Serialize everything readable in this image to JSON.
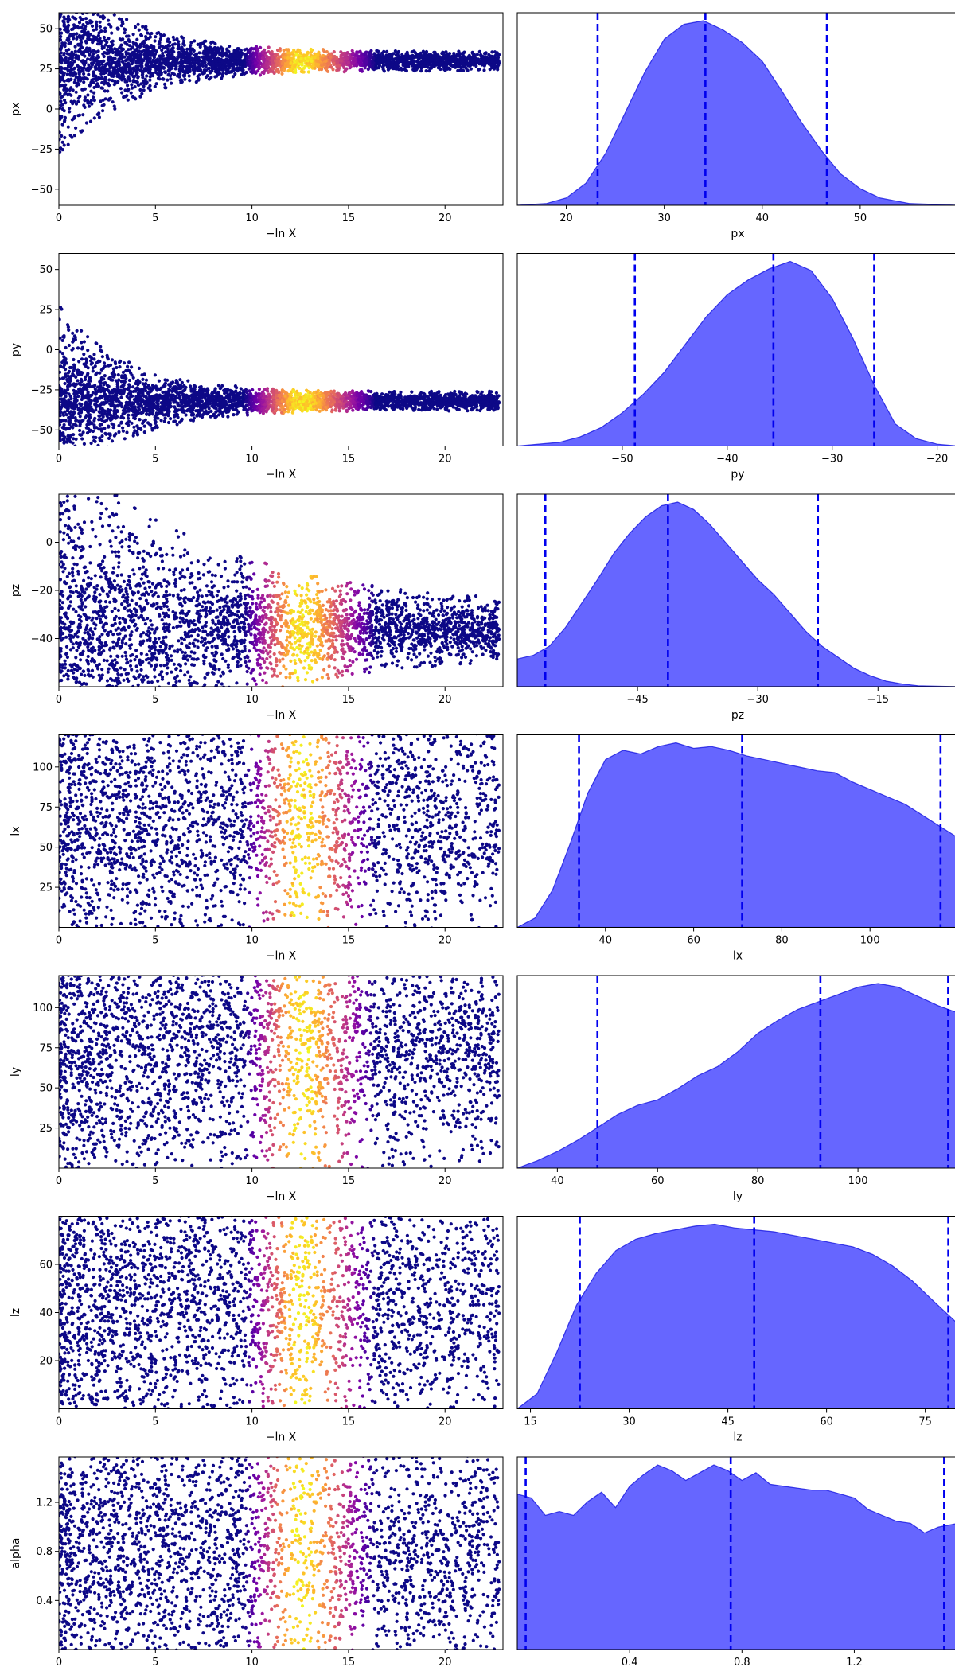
{
  "chart_data": [
    {
      "variable": "px",
      "ylabel": "px",
      "xlabel": "−ln X",
      "dist_xlabel": "px",
      "ylim": [
        -60,
        60
      ],
      "yticks": [
        -50,
        -25,
        0,
        25,
        50
      ],
      "scatter": {
        "type": "scatter",
        "xlim": [
          0,
          23
        ],
        "xticks": [
          0,
          5,
          10,
          15,
          20
        ],
        "center": 30,
        "spread0": 60,
        "spread_end": 6,
        "decay": 0.28
      },
      "dist": {
        "type": "area",
        "xlim": [
          15,
          60
        ],
        "xticks": [
          20,
          30,
          40,
          50
        ],
        "quantiles": [
          23.2,
          34.2,
          46.6
        ],
        "kde_x": [
          15,
          18,
          20,
          22,
          24,
          26,
          28,
          30,
          32,
          34,
          36,
          38,
          40,
          42,
          44,
          46,
          48,
          50,
          52,
          55,
          60
        ],
        "kde_y": [
          0.0,
          0.01,
          0.04,
          0.12,
          0.28,
          0.5,
          0.72,
          0.9,
          0.98,
          1.0,
          0.95,
          0.88,
          0.78,
          0.62,
          0.45,
          0.3,
          0.17,
          0.09,
          0.04,
          0.01,
          0.0
        ]
      }
    },
    {
      "variable": "py",
      "ylabel": "py",
      "xlabel": "−ln X",
      "dist_xlabel": "py",
      "ylim": [
        -60,
        60
      ],
      "yticks": [
        -50,
        -25,
        0,
        25,
        50
      ],
      "scatter": {
        "type": "scatter",
        "xlim": [
          0,
          23
        ],
        "xticks": [
          0,
          5,
          10,
          15,
          20
        ],
        "center": -32,
        "spread0": 60,
        "spread_end": 6,
        "decay": 0.3
      },
      "dist": {
        "type": "area",
        "xlim": [
          -60,
          -18
        ],
        "xticks": [
          -50,
          -40,
          -30,
          -20
        ],
        "quantiles": [
          -48.8,
          -35.6,
          -26.0
        ],
        "kde_x": [
          -60,
          -56,
          -54,
          -52,
          -50,
          -48,
          -46,
          -44,
          -42,
          -40,
          -38,
          -36,
          -34,
          -32,
          -30,
          -28,
          -26,
          -24,
          -22,
          -20,
          -18
        ],
        "kde_y": [
          0.0,
          0.02,
          0.05,
          0.1,
          0.18,
          0.28,
          0.4,
          0.55,
          0.7,
          0.82,
          0.9,
          0.96,
          1.0,
          0.95,
          0.8,
          0.58,
          0.33,
          0.12,
          0.04,
          0.01,
          0.0
        ]
      }
    },
    {
      "variable": "pz",
      "ylabel": "pz",
      "xlabel": "−ln X",
      "dist_xlabel": "pz",
      "ylim": [
        -60,
        20
      ],
      "yticks": [
        -40,
        -20,
        0
      ],
      "scatter": {
        "type": "scatter",
        "xlim": [
          0,
          23
        ],
        "xticks": [
          0,
          5,
          10,
          15,
          20
        ],
        "center": -36,
        "spread0": 80,
        "spread_end": 10,
        "decay": 0.13
      },
      "dist": {
        "type": "area",
        "xlim": [
          -60,
          -5
        ],
        "xticks": [
          -45,
          -30,
          -15
        ],
        "quantiles": [
          -56.5,
          -41.2,
          -22.5
        ],
        "kde_x": [
          -60,
          -58,
          -56,
          -54,
          -52,
          -50,
          -48,
          -46,
          -44,
          -42,
          -40,
          -38,
          -36,
          -34,
          -32,
          -30,
          -28,
          -26,
          -24,
          -22,
          -20,
          -18,
          -16,
          -14,
          -12,
          -10,
          -5
        ],
        "kde_y": [
          0.15,
          0.17,
          0.22,
          0.32,
          0.45,
          0.58,
          0.72,
          0.83,
          0.92,
          0.98,
          1.0,
          0.96,
          0.88,
          0.78,
          0.68,
          0.58,
          0.5,
          0.4,
          0.3,
          0.22,
          0.16,
          0.1,
          0.06,
          0.03,
          0.015,
          0.005,
          0.0
        ]
      }
    },
    {
      "variable": "lx",
      "ylabel": "lx",
      "xlabel": "−ln X",
      "dist_xlabel": "lx",
      "ylim": [
        0,
        120
      ],
      "yticks": [
        25,
        50,
        75,
        100
      ],
      "scatter": {
        "type": "scatter",
        "xlim": [
          0,
          23
        ],
        "xticks": [
          0,
          5,
          10,
          15,
          20
        ],
        "center": 70,
        "spread0": 120,
        "spread_end": 80,
        "decay": 0.05
      },
      "dist": {
        "type": "area",
        "xlim": [
          20,
          120
        ],
        "xticks": [
          40,
          60,
          80,
          100
        ],
        "quantiles": [
          34.0,
          71.0,
          116.0
        ],
        "kde_x": [
          20,
          24,
          28,
          32,
          36,
          40,
          44,
          48,
          52,
          56,
          60,
          64,
          68,
          72,
          76,
          80,
          84,
          88,
          92,
          96,
          100,
          104,
          108,
          112,
          116,
          120
        ],
        "kde_y": [
          0.0,
          0.05,
          0.2,
          0.45,
          0.72,
          0.9,
          0.95,
          0.93,
          0.97,
          0.99,
          0.96,
          0.97,
          0.95,
          0.92,
          0.9,
          0.88,
          0.86,
          0.84,
          0.83,
          0.78,
          0.74,
          0.7,
          0.66,
          0.6,
          0.54,
          0.48
        ]
      }
    },
    {
      "variable": "ly",
      "ylabel": "ly",
      "xlabel": "−ln X",
      "dist_xlabel": "ly",
      "ylim": [
        0,
        120
      ],
      "yticks": [
        25,
        50,
        75,
        100
      ],
      "scatter": {
        "type": "scatter",
        "xlim": [
          0,
          23
        ],
        "xticks": [
          0,
          5,
          10,
          15,
          20
        ],
        "center": 75,
        "spread0": 120,
        "spread_end": 60,
        "decay": 0.06,
        "shift": 2.0
      },
      "dist": {
        "type": "area",
        "xlim": [
          32,
          120
        ],
        "xticks": [
          40,
          60,
          80,
          100
        ],
        "quantiles": [
          48.0,
          92.5,
          118.0
        ],
        "kde_x": [
          32,
          36,
          40,
          44,
          48,
          52,
          56,
          60,
          64,
          68,
          72,
          76,
          80,
          84,
          88,
          92,
          96,
          100,
          104,
          108,
          112,
          116,
          120
        ],
        "kde_y": [
          0.0,
          0.04,
          0.09,
          0.15,
          0.22,
          0.29,
          0.34,
          0.37,
          0.43,
          0.5,
          0.55,
          0.63,
          0.73,
          0.8,
          0.86,
          0.9,
          0.94,
          0.98,
          1.0,
          0.98,
          0.93,
          0.88,
          0.84
        ]
      }
    },
    {
      "variable": "lz",
      "ylabel": "lz",
      "xlabel": "−ln X",
      "dist_xlabel": "lz",
      "ylim": [
        0,
        80
      ],
      "yticks": [
        20,
        40,
        60
      ],
      "scatter": {
        "type": "scatter",
        "xlim": [
          0,
          23
        ],
        "xticks": [
          0,
          5,
          10,
          15,
          20
        ],
        "center": 45,
        "spread0": 80,
        "spread_end": 60,
        "decay": 0.05
      },
      "dist": {
        "type": "area",
        "xlim": [
          13,
          80
        ],
        "xticks": [
          15,
          30,
          45,
          60,
          75
        ],
        "quantiles": [
          22.5,
          49.0,
          78.5
        ],
        "kde_x": [
          13,
          16,
          19,
          22,
          25,
          28,
          31,
          34,
          37,
          40,
          43,
          46,
          49,
          52,
          55,
          58,
          61,
          64,
          67,
          70,
          73,
          76,
          80
        ],
        "kde_y": [
          0.0,
          0.08,
          0.3,
          0.55,
          0.72,
          0.84,
          0.9,
          0.93,
          0.95,
          0.97,
          0.98,
          0.96,
          0.95,
          0.94,
          0.92,
          0.9,
          0.88,
          0.86,
          0.82,
          0.76,
          0.68,
          0.58,
          0.45
        ]
      }
    },
    {
      "variable": "alpha",
      "ylabel": "alpha",
      "xlabel": "−ln X",
      "dist_xlabel": "alpha",
      "ylim": [
        0,
        1.57
      ],
      "yticks": [
        0.4,
        0.8,
        1.2
      ],
      "scatter": {
        "type": "scatter",
        "xlim": [
          0,
          23
        ],
        "xticks": [
          0,
          5,
          10,
          15,
          20
        ],
        "center": 0.78,
        "spread0": 1.57,
        "spread_end": 1.2,
        "decay": 0.04
      },
      "dist": {
        "type": "area",
        "xlim": [
          0,
          1.57
        ],
        "xticks": [
          0.4,
          0.8,
          1.2
        ],
        "quantiles": [
          0.03,
          0.76,
          1.52
        ],
        "kde_x": [
          0.0,
          0.05,
          0.1,
          0.15,
          0.2,
          0.25,
          0.3,
          0.35,
          0.4,
          0.45,
          0.5,
          0.55,
          0.6,
          0.65,
          0.7,
          0.75,
          0.8,
          0.85,
          0.9,
          0.95,
          1.0,
          1.05,
          1.1,
          1.15,
          1.2,
          1.25,
          1.3,
          1.35,
          1.4,
          1.45,
          1.5,
          1.57
        ],
        "kde_y": [
          0.8,
          0.78,
          0.69,
          0.71,
          0.69,
          0.76,
          0.81,
          0.73,
          0.84,
          0.9,
          0.95,
          0.92,
          0.87,
          0.91,
          0.95,
          0.92,
          0.87,
          0.91,
          0.85,
          0.84,
          0.83,
          0.82,
          0.82,
          0.8,
          0.78,
          0.72,
          0.69,
          0.66,
          0.65,
          0.6,
          0.63,
          0.65
        ]
      }
    }
  ]
}
